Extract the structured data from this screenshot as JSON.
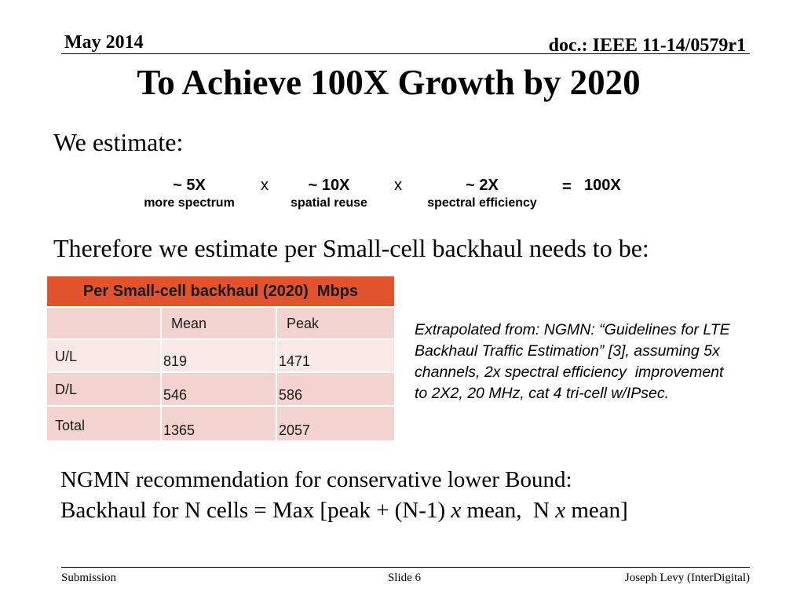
{
  "theme": {
    "table_header": "#E0532D",
    "band_dark": "#F2D3D0",
    "band_light": "#F8E9E7",
    "table_text": "#1b1b1b"
  },
  "header": {
    "date": "May 2014",
    "doc_id": "doc.: IEEE 11-14/0579r1"
  },
  "title": "To Achieve 100X Growth by 2020",
  "intro": "We estimate:",
  "equation": {
    "terms": [
      {
        "value": "~ 5X",
        "label": "more spectrum"
      },
      {
        "value": "~ 10X",
        "label": "spatial reuse"
      },
      {
        "value": "~ 2X",
        "label": "spectral efficiency"
      }
    ],
    "operator": "x",
    "equals": "=",
    "result": "100X"
  },
  "therefore": "Therefore we estimate per Small-cell backhaul needs to be:",
  "table": {
    "caption": "Per Small-cell backhaul (2020)  Mbps",
    "columns": {
      "mean": "Mean",
      "peak": "Peak"
    },
    "rows": [
      {
        "label": "U/L",
        "mean": 819,
        "peak": 1471
      },
      {
        "label": "D/L",
        "mean": 546,
        "peak": 586
      },
      {
        "label": "Total",
        "mean": 1365,
        "peak": 2057
      }
    ]
  },
  "note_lines": [
    "Extrapolated from: NGMN: “Guidelines for LTE",
    "Backhaul Traffic Estimation” [3], assuming 5x",
    "channels, 2x spectral efficiency  improvement",
    "to 2X2, 20 MHz, cat 4 tri-cell w/IPsec."
  ],
  "recommendation": {
    "heading": "NGMN recommendation for conservative lower Bound:",
    "formula_parts": [
      "Backhaul for N cells = Max [peak + (N-1) ",
      "x",
      " mean,  N ",
      "x",
      " mean]"
    ]
  },
  "footer": {
    "left": "Submission",
    "center": "Slide 6",
    "right": "Joseph Levy (InterDigital)"
  }
}
